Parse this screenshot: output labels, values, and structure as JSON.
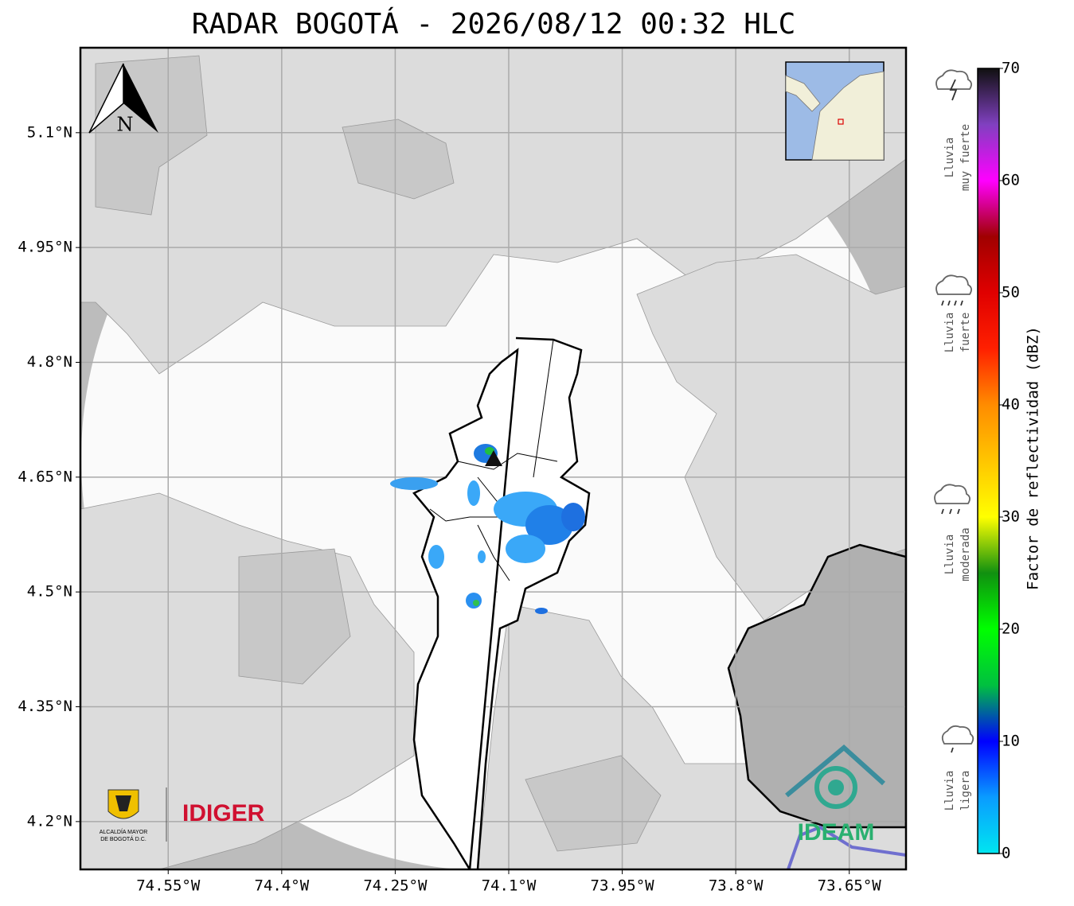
{
  "title": "RADAR BOGOTÁ - 2026/08/12 00:32 HLC",
  "map": {
    "xlim": [
      -74.666,
      -73.575
    ],
    "ylim": [
      4.1375,
      5.211
    ],
    "grid": true,
    "xticks": [
      {
        "value": -74.55,
        "label": "74.55°W"
      },
      {
        "value": -74.4,
        "label": "74.4°W"
      },
      {
        "value": -74.25,
        "label": "74.25°W"
      },
      {
        "value": -74.1,
        "label": "74.1°W"
      },
      {
        "value": -73.95,
        "label": "73.95°W"
      },
      {
        "value": -73.8,
        "label": "73.8°W"
      },
      {
        "value": -73.65,
        "label": "73.65°W"
      }
    ],
    "yticks": [
      {
        "value": 5.1,
        "label": "5.1°N"
      },
      {
        "value": 4.95,
        "label": "4.95°N"
      },
      {
        "value": 4.8,
        "label": "4.8°N"
      },
      {
        "value": 4.65,
        "label": "4.65°N"
      },
      {
        "value": 4.5,
        "label": "4.5°N"
      },
      {
        "value": 4.35,
        "label": "4.35°N"
      },
      {
        "value": 4.2,
        "label": "4.2°N"
      }
    ]
  },
  "colorbar": {
    "label": "Factor de reflectividad (dBZ)",
    "lim": [
      0,
      70
    ],
    "ticks": [
      0,
      10,
      20,
      30,
      40,
      50,
      60,
      70
    ],
    "stops": [
      {
        "value": 0,
        "color": "#00e6f0"
      },
      {
        "value": 5,
        "color": "#0a9cff"
      },
      {
        "value": 10,
        "color": "#0000ff"
      },
      {
        "value": 15,
        "color": "#00c040"
      },
      {
        "value": 20,
        "color": "#00ff00"
      },
      {
        "value": 25,
        "color": "#109010"
      },
      {
        "value": 30,
        "color": "#ffff00"
      },
      {
        "value": 40,
        "color": "#ff8c00"
      },
      {
        "value": 45,
        "color": "#ff2000"
      },
      {
        "value": 50,
        "color": "#e00000"
      },
      {
        "value": 55,
        "color": "#a00000"
      },
      {
        "value": 60,
        "color": "#ff00ff"
      },
      {
        "value": 65,
        "color": "#8040c0"
      },
      {
        "value": 70,
        "color": "#101010"
      }
    ]
  },
  "intensity_legend": [
    {
      "lines": [
        "Lluvia",
        "muy fuerte"
      ]
    },
    {
      "lines": [
        "Lluvia",
        "fuerte"
      ]
    },
    {
      "lines": [
        "Lluvia",
        "moderada"
      ]
    },
    {
      "lines": [
        "Lluvia",
        "ligera"
      ]
    }
  ],
  "north_arrow": "N",
  "logos": {
    "alcaldia": [
      "ALCALDÍA MAYOR",
      "DE BOGOTÁ D.C."
    ],
    "idiger": "IDIGER",
    "ideam": "IDEAM"
  }
}
